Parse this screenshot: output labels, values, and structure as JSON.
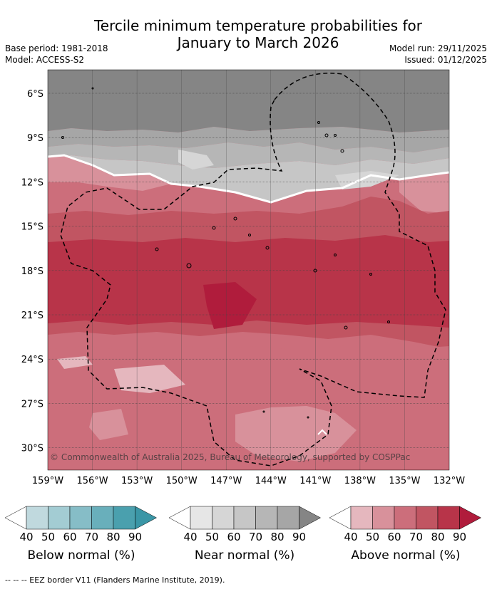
{
  "title_line1": "Tercile minimum temperature probabilities for",
  "title_line2": "January to March 2026",
  "base_period": "Base period: 1981-2018",
  "model": "Model: ACCESS-S2",
  "model_run": "Model run: 29/11/2025",
  "issued": "Issued: 01/12/2025",
  "lat_labels": [
    "6°S",
    "9°S",
    "12°S",
    "15°S",
    "18°S",
    "21°S",
    "24°S",
    "27°S",
    "30°S"
  ],
  "lon_labels": [
    "159°W",
    "156°W",
    "153°W",
    "150°W",
    "147°W",
    "144°W",
    "141°W",
    "138°W",
    "135°W",
    "132°W"
  ],
  "copyright": "© Commonwealth of Australia 2025, Bureau of Meteorology, supported by COSPPac",
  "colorbars": [
    {
      "title": "Below normal (%)",
      "ticks": [
        "40",
        "50",
        "60",
        "70",
        "80",
        "90"
      ],
      "colors": [
        "#ffffff",
        "#c0d9de",
        "#a3ccd3",
        "#86bdc7",
        "#69afbb",
        "#4aa0ae",
        "#3a96a6"
      ]
    },
    {
      "title": "Near normal (%)",
      "ticks": [
        "40",
        "50",
        "60",
        "70",
        "80",
        "90"
      ],
      "colors": [
        "#ffffff",
        "#e6e6e6",
        "#d6d6d6",
        "#c6c6c6",
        "#b6b6b6",
        "#a6a6a6",
        "#858585"
      ]
    },
    {
      "title": "Above normal (%)",
      "ticks": [
        "40",
        "50",
        "60",
        "70",
        "80",
        "90"
      ],
      "colors": [
        "#ffffff",
        "#e5b7be",
        "#d8919b",
        "#cc6e7b",
        "#c15562",
        "#b83449",
        "#b01c3c"
      ]
    }
  ],
  "footer": "--  --  -- EEZ border V11 (Flanders Marine Institute, 2019)."
}
